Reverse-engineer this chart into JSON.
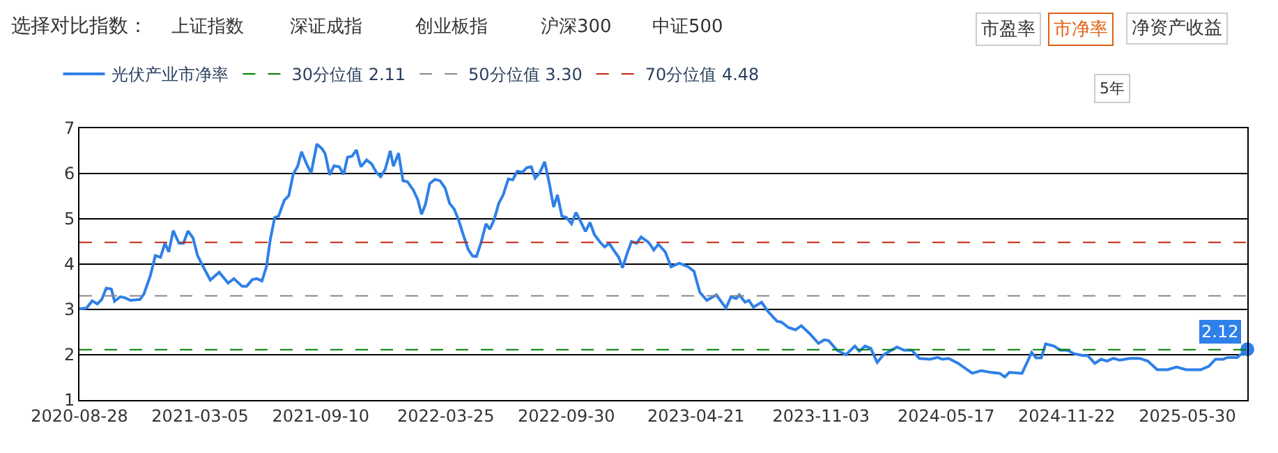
{
  "chart_data": {
    "type": "line",
    "annotations": [
      "选择对比指数：",
      "上证指数",
      "深证成指",
      "创业板指",
      "沪深300",
      "中证500",
      "市盈率",
      "市净率",
      "净资产收益",
      "5年"
    ],
    "x": [
      "2020-08-28",
      "2020-09-08",
      "2020-09-17",
      "2020-09-25",
      "2020-10-02",
      "2020-10-09",
      "2020-10-17",
      "2020-10-22",
      "2020-10-31",
      "2020-11-07",
      "2020-11-16",
      "2020-12-01",
      "2020-12-07",
      "2020-12-17",
      "2020-12-25",
      "2021-01-02",
      "2021-01-09",
      "2021-01-15",
      "2021-01-22",
      "2021-01-31",
      "2021-02-07",
      "2021-02-14",
      "2021-02-22",
      "2021-03-01",
      "2021-03-10",
      "2021-03-21",
      "2021-04-04",
      "2021-04-18",
      "2021-04-27",
      "2021-05-10",
      "2021-05-17",
      "2021-05-26",
      "2021-06-02",
      "2021-06-10",
      "2021-06-17",
      "2021-06-23",
      "2021-06-30",
      "2021-07-06",
      "2021-07-15",
      "2021-07-22",
      "2021-07-29",
      "2021-08-05",
      "2021-08-11",
      "2021-08-19",
      "2021-08-26",
      "2021-09-04",
      "2021-09-12",
      "2021-09-17",
      "2021-09-24",
      "2021-10-01",
      "2021-10-09",
      "2021-10-16",
      "2021-10-22",
      "2021-10-29",
      "2021-11-05",
      "2021-11-12",
      "2021-11-21",
      "2021-11-29",
      "2021-12-06",
      "2021-12-13",
      "2021-12-20",
      "2021-12-28",
      "2022-01-02",
      "2022-01-10",
      "2022-01-17",
      "2022-01-24",
      "2022-02-02",
      "2022-02-09",
      "2022-02-15",
      "2022-02-21",
      "2022-02-28",
      "2022-03-08",
      "2022-03-16",
      "2022-03-24",
      "2022-03-31",
      "2022-04-07",
      "2022-04-14",
      "2022-04-22",
      "2022-04-29",
      "2022-05-06",
      "2022-05-12",
      "2022-05-19",
      "2022-05-27",
      "2022-06-02",
      "2022-06-09",
      "2022-06-16",
      "2022-06-23",
      "2022-07-01",
      "2022-07-08",
      "2022-07-15",
      "2022-07-23",
      "2022-07-30",
      "2022-08-06",
      "2022-08-12",
      "2022-08-19",
      "2022-08-27",
      "2022-09-03",
      "2022-09-10",
      "2022-09-16",
      "2022-09-23",
      "2022-09-30",
      "2022-10-08",
      "2022-10-15",
      "2022-10-22",
      "2022-10-30",
      "2022-11-06",
      "2022-11-13",
      "2022-11-22",
      "2022-11-29",
      "2022-12-06",
      "2022-12-14",
      "2022-12-21",
      "2022-12-27",
      "2023-01-03",
      "2023-01-10",
      "2023-01-18",
      "2023-01-25",
      "2023-02-06",
      "2023-02-14",
      "2023-02-21",
      "2023-03-04",
      "2023-03-13",
      "2023-03-26",
      "2023-04-09",
      "2023-04-18",
      "2023-04-27",
      "2023-05-08",
      "2023-05-23",
      "2023-06-07",
      "2023-06-15",
      "2023-06-23",
      "2023-06-28",
      "2023-07-07",
      "2023-07-13",
      "2023-07-20",
      "2023-08-02",
      "2023-08-11",
      "2023-08-26",
      "2023-09-02",
      "2023-09-13",
      "2023-09-24",
      "2023-10-03",
      "2023-10-16",
      "2023-10-30",
      "2023-11-08",
      "2023-11-15",
      "2023-11-28",
      "2023-12-12",
      "2023-12-26",
      "2024-01-02",
      "2024-01-11",
      "2024-01-20",
      "2024-01-30",
      "2024-02-09",
      "2024-03-01",
      "2024-03-12",
      "2024-03-24",
      "2024-04-05",
      "2024-04-22",
      "2024-05-04",
      "2024-05-11",
      "2024-05-21",
      "2024-06-05",
      "2024-06-27",
      "2024-07-11",
      "2024-07-26",
      "2024-08-09",
      "2024-08-17",
      "2024-08-24",
      "2024-09-13",
      "2024-09-28",
      "2024-10-05",
      "2024-10-13",
      "2024-10-20",
      "2024-11-02",
      "2024-11-12",
      "2024-11-23",
      "2024-12-04",
      "2024-12-18",
      "2024-12-25",
      "2025-01-05",
      "2025-01-15",
      "2025-01-24",
      "2025-02-03",
      "2025-02-13",
      "2025-03-01",
      "2025-03-16",
      "2025-03-29",
      "2025-04-13",
      "2025-04-29",
      "2025-05-13",
      "2025-05-28",
      "2025-06-20",
      "2025-07-03",
      "2025-07-13",
      "2025-07-25",
      "2025-08-01",
      "2025-08-16",
      "2025-09-01"
    ],
    "series": [
      {
        "name": "光伏产业市净率",
        "color": "#2f80e8",
        "values": [
          3.01,
          3.03,
          3.19,
          3.12,
          3.22,
          3.47,
          3.45,
          3.18,
          3.28,
          3.26,
          3.2,
          3.22,
          3.34,
          3.74,
          4.19,
          4.15,
          4.46,
          4.27,
          4.74,
          4.46,
          4.46,
          4.73,
          4.58,
          4.19,
          3.94,
          3.65,
          3.82,
          3.58,
          3.68,
          3.51,
          3.51,
          3.66,
          3.68,
          3.63,
          3.94,
          4.54,
          5.03,
          5.06,
          5.41,
          5.51,
          5.99,
          6.16,
          6.48,
          6.21,
          6.01,
          6.65,
          6.55,
          6.44,
          5.97,
          6.17,
          6.15,
          5.98,
          6.36,
          6.38,
          6.52,
          6.15,
          6.3,
          6.21,
          6.03,
          5.93,
          6.09,
          6.5,
          6.16,
          6.45,
          5.84,
          5.82,
          5.64,
          5.43,
          5.1,
          5.31,
          5.78,
          5.87,
          5.84,
          5.68,
          5.34,
          5.22,
          4.98,
          4.62,
          4.33,
          4.18,
          4.17,
          4.46,
          4.89,
          4.77,
          4.99,
          5.34,
          5.53,
          5.88,
          5.86,
          6.05,
          6.03,
          6.13,
          6.15,
          5.9,
          6.01,
          6.26,
          5.8,
          5.26,
          5.53,
          5.06,
          5.03,
          4.89,
          5.14,
          4.95,
          4.72,
          4.92,
          4.65,
          4.48,
          4.38,
          4.46,
          4.29,
          4.15,
          3.92,
          4.23,
          4.5,
          4.46,
          4.6,
          4.48,
          4.31,
          4.44,
          4.27,
          3.94,
          4.02,
          3.94,
          3.84,
          3.38,
          3.2,
          3.32,
          3.03,
          3.28,
          3.24,
          3.32,
          3.16,
          3.2,
          3.05,
          3.16,
          2.97,
          2.74,
          2.72,
          2.6,
          2.55,
          2.64,
          2.47,
          2.25,
          2.33,
          2.31,
          2.1,
          2.0,
          2.19,
          2.08,
          2.19,
          2.14,
          1.83,
          2.0,
          2.17,
          2.1,
          2.1,
          1.92,
          1.9,
          1.94,
          1.9,
          1.92,
          1.81,
          1.59,
          1.65,
          1.61,
          1.59,
          1.51,
          1.61,
          1.59,
          2.05,
          1.93,
          1.93,
          2.24,
          2.19,
          2.1,
          2.1,
          2.02,
          1.98,
          1.98,
          1.81,
          1.9,
          1.86,
          1.92,
          1.88,
          1.92,
          1.92,
          1.86,
          1.67,
          1.67,
          1.73,
          1.67,
          1.67,
          1.75,
          1.9,
          1.9,
          1.94,
          1.94,
          2.12
        ],
        "value_labels": [
          null,
          null,
          null,
          null,
          null,
          null,
          null,
          null,
          null,
          null,
          null,
          null,
          null,
          null,
          null,
          null,
          null,
          null,
          null,
          null,
          null,
          null,
          null,
          null,
          null,
          null,
          null,
          null,
          null,
          null,
          null,
          null,
          null,
          null,
          null,
          null,
          null,
          null,
          null,
          null,
          null,
          null,
          null,
          null,
          null,
          null,
          null,
          null,
          null,
          null,
          null,
          null,
          null,
          null,
          null,
          null,
          null,
          null,
          null,
          null,
          null,
          null,
          null,
          null,
          null,
          null,
          null,
          null,
          null,
          null,
          null,
          null,
          null,
          null,
          null,
          null,
          null,
          null,
          null,
          null,
          null,
          null,
          null,
          null,
          null,
          null,
          null,
          null,
          null,
          null,
          null,
          null,
          null,
          null,
          null,
          null,
          null,
          null,
          null,
          null,
          null,
          null,
          null,
          null,
          null,
          null,
          null,
          null,
          null,
          null,
          null,
          null,
          null,
          null,
          null,
          null,
          null,
          null,
          null,
          null,
          null,
          null,
          null,
          null,
          null,
          null,
          null,
          null,
          null,
          null,
          null,
          null,
          null,
          null,
          null,
          null,
          null,
          null,
          null,
          null,
          null,
          null,
          null,
          null,
          null,
          null,
          null,
          null,
          null,
          null,
          null,
          null,
          null,
          null,
          null,
          null,
          null,
          null,
          null,
          null,
          null,
          null,
          null,
          null,
          null,
          null,
          null,
          null,
          null,
          null,
          null,
          null,
          null,
          null,
          null,
          null,
          null,
          null,
          null,
          null,
          null,
          null,
          null,
          null,
          null,
          null,
          null,
          null,
          null,
          null,
          null,
          null,
          null,
          null,
          null,
          null,
          null,
          null,
          "2.12"
        ]
      }
    ],
    "ref_lines": [
      {
        "axis": "y",
        "value": 2.11,
        "label": "30分位值 2.11",
        "color": "#008000",
        "line_style": "dashed"
      },
      {
        "axis": "y",
        "value": 3.3,
        "label": "50分位值 3.30",
        "color": "#888888",
        "line_style": "dashed"
      },
      {
        "axis": "y",
        "value": 4.48,
        "label": "70分位值 4.48",
        "color": "#c0280f",
        "line_style": "dashed"
      }
    ],
    "xlim": [
      "2020-08-28",
      "2025-09-01"
    ],
    "xticks": [
      "2020-08-28",
      "2021-03-05",
      "2021-09-10",
      "2022-03-25",
      "2022-09-30",
      "2023-04-21",
      "2023-11-03",
      "2024-05-17",
      "2024-11-22",
      "2025-05-30"
    ],
    "ylim": [
      1,
      7
    ],
    "yticks": [
      1,
      2,
      3,
      4,
      5,
      6,
      7
    ],
    "grid": "y",
    "legend": "top left",
    "marker": "none",
    "line_style": "solid"
  }
}
